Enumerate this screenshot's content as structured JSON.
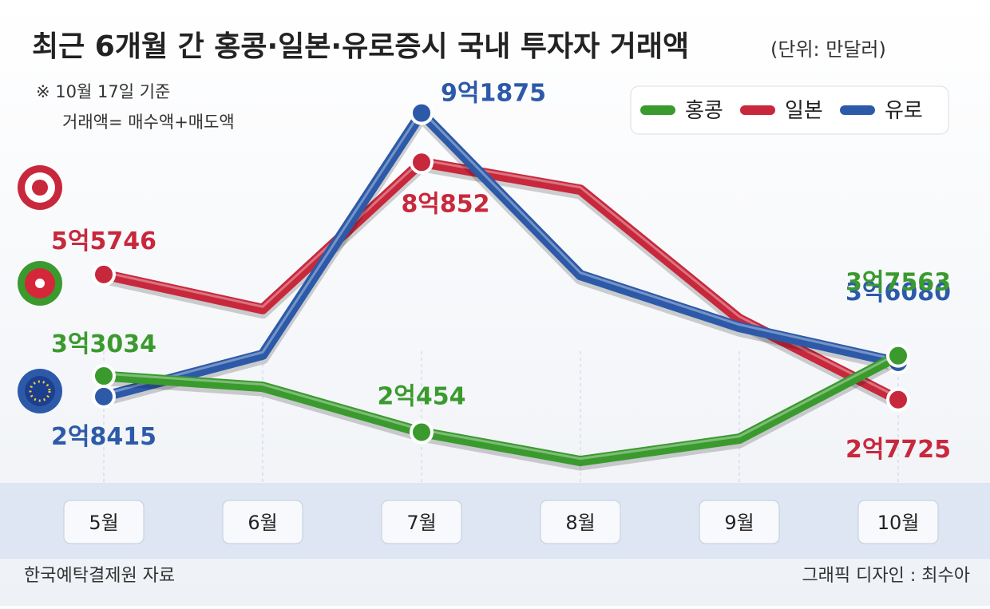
{
  "chart_data": {
    "type": "line",
    "title": "최근 6개월 간 홍콩·일본·유로증시 국내 투자자 거래액",
    "subtitle": "(단위: 만달러)",
    "notes": [
      "※ 10월 17일 기준",
      "거래액= 매수액+매도액"
    ],
    "source": "한국예탁결제원 자료",
    "credit": "그래픽 디자인 : 최수아",
    "categories": [
      "5월",
      "6월",
      "7월",
      "8월",
      "9월",
      "10월"
    ],
    "series": [
      {
        "name": "홍콩",
        "color": "#3a9a2e",
        "values": [
          33034,
          30600,
          20454,
          14000,
          19000,
          37563
        ],
        "value_labels": [
          "3억3034",
          null,
          "2억454",
          null,
          null,
          "3억7563"
        ]
      },
      {
        "name": "일본",
        "color": "#c8283c",
        "values": [
          55746,
          48000,
          80852,
          74700,
          45800,
          27725
        ],
        "value_labels": [
          "5억5746",
          null,
          "8억852",
          null,
          null,
          "2억7725"
        ]
      },
      {
        "name": "유로",
        "color": "#2d5aa8",
        "values": [
          28415,
          37800,
          91875,
          55600,
          44000,
          36080
        ],
        "value_labels": [
          "2억8415",
          null,
          "9억1875",
          null,
          null,
          "3억6080"
        ]
      }
    ],
    "legend": "top-right"
  }
}
